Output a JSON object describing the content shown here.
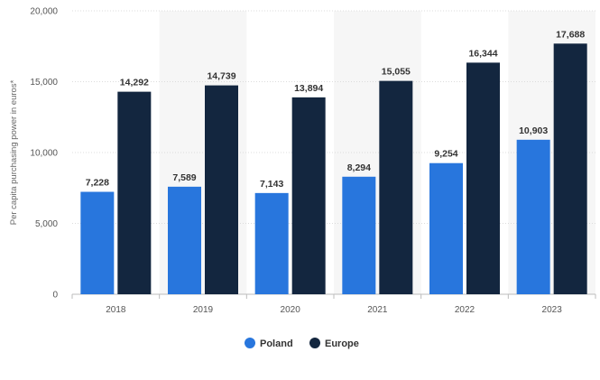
{
  "chart_data": {
    "type": "bar",
    "title": "",
    "xlabel": "",
    "ylabel": "Per capita purchasing power in euros*",
    "categories": [
      "2018",
      "2019",
      "2020",
      "2021",
      "2022",
      "2023"
    ],
    "series": [
      {
        "name": "Poland",
        "color": "#2876dd",
        "values": [
          7228,
          7589,
          7143,
          8294,
          9254,
          10903
        ],
        "labels": [
          "7,228",
          "7,589",
          "7,143",
          "8,294",
          "9,254",
          "10,903"
        ]
      },
      {
        "name": "Europe",
        "color": "#13263f",
        "values": [
          14292,
          14739,
          13894,
          15055,
          16344,
          17688
        ],
        "labels": [
          "14,292",
          "14,739",
          "13,894",
          "15,055",
          "16,344",
          "17,688"
        ]
      }
    ],
    "ylim": [
      0,
      20000
    ],
    "yticks": [
      0,
      5000,
      10000,
      15000,
      20000
    ],
    "ytick_labels": [
      "0",
      "5,000",
      "10,000",
      "15,000",
      "20,000"
    ],
    "grid": true,
    "legend_position": "bottom-center"
  }
}
